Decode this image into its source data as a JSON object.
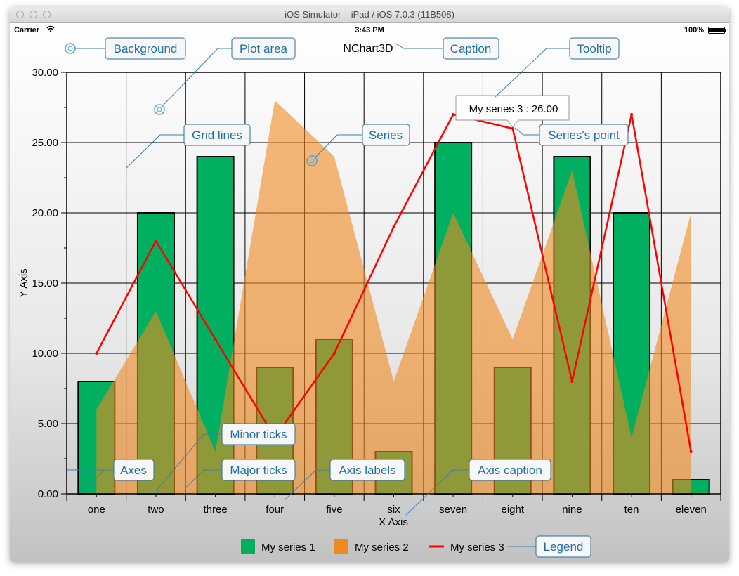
{
  "window": {
    "title": "iOS Simulator – iPad / iOS 7.0.3 (11B508)"
  },
  "status_bar": {
    "carrier": "Carrier",
    "time": "3:43 PM",
    "battery": "100%"
  },
  "colors": {
    "series1": "#00b060",
    "series2": "#f08a20",
    "series3": "#ff0000",
    "callout": "#1f6fa8"
  },
  "annotations": {
    "background": "Background",
    "plot_area": "Plot area",
    "caption": "Caption",
    "tooltip": "Tooltip",
    "grid_lines": "Grid lines",
    "series": "Series",
    "series_point": "Series's point",
    "minor_ticks": "Minor ticks",
    "axes": "Axes",
    "major_ticks": "Major ticks",
    "axis_labels": "Axis labels",
    "axis_caption": "Axis caption",
    "legend": "Legend"
  },
  "chart_data": {
    "type": "bar",
    "title": "NChart3D",
    "xlabel": "X Axis",
    "ylabel": "Y Axis",
    "ylim": [
      0,
      30
    ],
    "y_ticks": [
      "0.00",
      "5.00",
      "10.00",
      "15.00",
      "20.00",
      "25.00",
      "30.00"
    ],
    "grid": true,
    "legend_position": "bottom",
    "categories": [
      "one",
      "two",
      "three",
      "four",
      "five",
      "six",
      "seven",
      "eight",
      "nine",
      "ten",
      "eleven"
    ],
    "series": [
      {
        "name": "My series 1",
        "type": "bar",
        "values": [
          8,
          20,
          24,
          9,
          11,
          3,
          25,
          9,
          24,
          20,
          1
        ]
      },
      {
        "name": "My series 2",
        "type": "area",
        "values": [
          6,
          13,
          3,
          28,
          24,
          8,
          20,
          11,
          23,
          4,
          20
        ]
      },
      {
        "name": "My series 3",
        "type": "line",
        "values": [
          10,
          18,
          11,
          4,
          10,
          19,
          27,
          26,
          8,
          27,
          3
        ]
      }
    ],
    "tooltip": {
      "text": "My series 3 : 26.00"
    }
  }
}
